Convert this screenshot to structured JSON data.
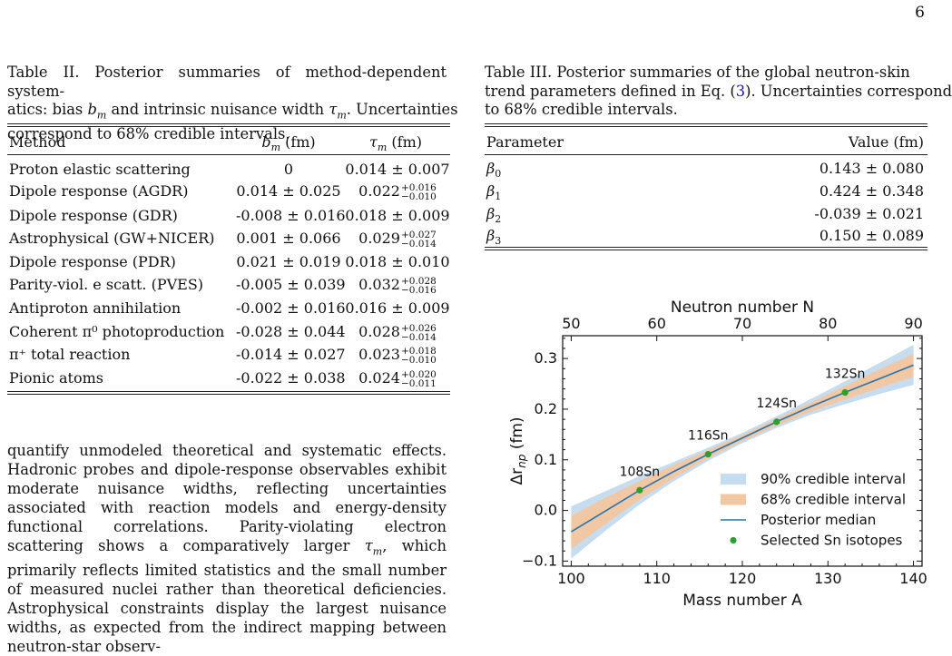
{
  "page_number": "6",
  "table2": {
    "caption": "Table II. Posterior summaries of method-dependent systematics: bias b_m and intrinsic nuisance width τ_m. Uncertainties correspond to 68% credible intervals.",
    "cap_line1": "Table II. Posterior summaries of method-dependent system-",
    "cap_line2a": "atics: bias ",
    "cap_bm": "b",
    "cap_bm_sub": "m",
    "cap_line2b": " and intrinsic nuisance width ",
    "cap_tau": "τ",
    "cap_tau_sub": "m",
    "cap_line2c": ". Uncertainties",
    "cap_line3": "correspond to 68% credible intervals.",
    "headers": {
      "method": "Method",
      "bias": "b",
      "bias_sub": "m",
      "bias_unit": " (fm)",
      "width": "τ",
      "width_sub": "m",
      "width_unit": " (fm)"
    },
    "rows": [
      {
        "method": "Proton elastic scattering",
        "bias": "0",
        "width": "0.014 ± 0.007",
        "w_up": "",
        "w_dn": ""
      },
      {
        "method": "Dipole response (AGDR)",
        "bias": "0.014 ± 0.025",
        "width": "0.022",
        "w_up": "+0.016",
        "w_dn": "−0.010"
      },
      {
        "method": "Dipole response (GDR)",
        "bias": "-0.008 ± 0.016",
        "width": "0.018 ± 0.009",
        "w_up": "",
        "w_dn": ""
      },
      {
        "method": "Astrophysical (GW+NICER)",
        "bias": "0.001 ± 0.066",
        "width": "0.029",
        "w_up": "+0.027",
        "w_dn": "−0.014"
      },
      {
        "method": "Dipole response (PDR)",
        "bias": "0.021 ± 0.019",
        "width": "0.018 ± 0.010",
        "w_up": "",
        "w_dn": ""
      },
      {
        "method": "Parity-viol. e scatt. (PVES)",
        "bias": "-0.005 ± 0.039",
        "width": "0.032",
        "w_up": "+0.028",
        "w_dn": "−0.016"
      },
      {
        "method": "Antiproton annihilation",
        "bias": "-0.002 ± 0.016",
        "width": "0.016 ± 0.009",
        "w_up": "",
        "w_dn": ""
      },
      {
        "method": "Coherent π⁰ photoproduction",
        "bias": "-0.028 ± 0.044",
        "width": "0.028",
        "w_up": "+0.026",
        "w_dn": "−0.014"
      },
      {
        "method": "π⁺ total reaction",
        "bias": "-0.014 ± 0.027",
        "width": "0.023",
        "w_up": "+0.018",
        "w_dn": "−0.010"
      },
      {
        "method": "Pionic atoms",
        "bias": "-0.022 ± 0.038",
        "width": "0.024",
        "w_up": "+0.020",
        "w_dn": "−0.011"
      }
    ]
  },
  "table3": {
    "cap_line1": "Table III. Posterior summaries of the global neutron-skin",
    "cap_line2": "trend parameters defined in Eq. (3). Uncertainties correspond",
    "cap_line2a": "trend parameters defined in Eq. (",
    "cap_ref": "3",
    "cap_line2b": "). Uncertainties correspond",
    "cap_line3": "to 68% credible intervals.",
    "headers": {
      "parameter": "Parameter",
      "value": "Value (fm)"
    },
    "rows": [
      {
        "param": "β",
        "sub": "0",
        "value": "0.143 ± 0.080"
      },
      {
        "param": "β",
        "sub": "1",
        "value": "0.424 ± 0.348"
      },
      {
        "param": "β",
        "sub": "2",
        "value": "-0.039 ± 0.021"
      },
      {
        "param": "β",
        "sub": "3",
        "value": "0.150 ± 0.089"
      }
    ]
  },
  "body_text": "quantify unmodeled theoretical and systematic effects. Hadronic probes and dipole-response observables exhibit moderate nuisance widths, reflecting uncertainties associated with reaction models and energy-density functional correlations. Parity-violating electron scattering shows a comparatively larger τm, which primarily reflects limited statistics and the small number of measured nuclei rather than theoretical deficiencies. Astrophysical constraints display the largest nuisance widths, as expected from the indirect mapping between neutron-star observ-",
  "body_a": "quantify unmodeled theoretical and systematic effects. Hadronic probes and dipole-response observables exhibit moderate nuisance widths, reflecting uncertainties associated with reaction models and energy-density functional correlations. Parity-violating electron scattering shows a comparatively larger ",
  "body_tau": "τ",
  "body_tau_sub": "m",
  "body_b": ", which primarily reflects limited statistics and the small number of measured nuclei rather than theoretical deficiencies. Astrophysical constraints display the largest nuisance widths, as expected from the indirect mapping between neutron-star observ-",
  "chart_data": {
    "type": "line",
    "xlabel": "Mass number A",
    "ylabel": "Δr_np (fm)",
    "ylabel_main": "Δr",
    "ylabel_sub": "np",
    "ylabel_unit": " (fm)",
    "top_xlabel": "Neutron number N",
    "xlim": [
      99,
      141
    ],
    "ylim": [
      -0.11,
      0.345
    ],
    "x_ticks": [
      100,
      110,
      120,
      130,
      140
    ],
    "x_tick_labels": [
      "100",
      "110",
      "120",
      "130",
      "140"
    ],
    "y_ticks": [
      -0.1,
      0.0,
      0.1,
      0.2,
      0.3
    ],
    "y_tick_labels": [
      "−0.1",
      "0.0",
      "0.1",
      "0.2",
      "0.3"
    ],
    "top_ticks_N": [
      50,
      60,
      70,
      80,
      90
    ],
    "top_tick_labels": [
      "50",
      "60",
      "70",
      "80",
      "90"
    ],
    "top_axis_offset": 50,
    "grid": false,
    "legend_position": "lower-right",
    "series": [
      {
        "name": "Posterior median",
        "kind": "line",
        "color": "#1f77b4",
        "x": [
          100,
          104,
          108,
          112,
          116,
          120,
          124,
          128,
          132,
          136,
          140
        ],
        "y": [
          -0.042,
          -0.001,
          0.04,
          0.077,
          0.111,
          0.143,
          0.175,
          0.205,
          0.233,
          0.26,
          0.287
        ]
      },
      {
        "name": "90% credible interval",
        "kind": "band",
        "color": "#c6dcef",
        "x": [
          100,
          104,
          108,
          112,
          116,
          120,
          124,
          128,
          132,
          136,
          140
        ],
        "lower": [
          -0.095,
          -0.04,
          0.012,
          0.058,
          0.098,
          0.133,
          0.163,
          0.189,
          0.21,
          0.23,
          0.248
        ],
        "upper": [
          0.008,
          0.038,
          0.068,
          0.096,
          0.124,
          0.153,
          0.186,
          0.22,
          0.255,
          0.291,
          0.327
        ]
      },
      {
        "name": "68% credible interval",
        "kind": "band",
        "color": "#f2c7a3",
        "x": [
          100,
          104,
          108,
          112,
          116,
          120,
          124,
          128,
          132,
          136,
          140
        ],
        "lower": [
          -0.076,
          -0.027,
          0.022,
          0.064,
          0.103,
          0.137,
          0.167,
          0.195,
          0.219,
          0.242,
          0.264
        ],
        "upper": [
          -0.011,
          0.025,
          0.058,
          0.09,
          0.119,
          0.149,
          0.181,
          0.213,
          0.246,
          0.278,
          0.309
        ]
      },
      {
        "name": "Selected Sn isotopes",
        "kind": "points",
        "color": "#2ca02c",
        "points": [
          {
            "x": 108,
            "y": 0.04,
            "label": "108Sn"
          },
          {
            "x": 116,
            "y": 0.111,
            "label": "116Sn"
          },
          {
            "x": 124,
            "y": 0.175,
            "label": "124Sn"
          },
          {
            "x": 132,
            "y": 0.233,
            "label": "132Sn"
          }
        ]
      }
    ],
    "legend": [
      "90% credible interval",
      "68% credible interval",
      "Posterior median",
      "Selected Sn isotopes"
    ]
  }
}
